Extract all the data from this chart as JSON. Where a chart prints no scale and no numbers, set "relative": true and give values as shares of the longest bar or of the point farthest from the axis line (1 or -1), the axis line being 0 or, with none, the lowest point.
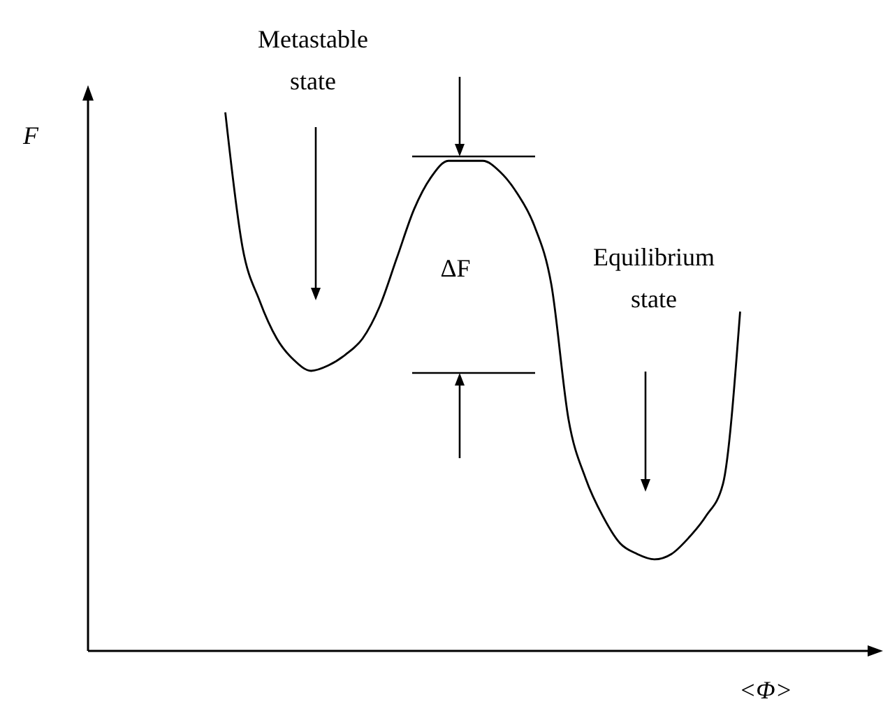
{
  "chart_data": {
    "type": "line",
    "relative": true,
    "ylabel": "F",
    "xlabel": "<Φ>",
    "color": "#000000",
    "marker": "none",
    "annotations": [
      "Metastable state",
      "ΔF",
      "Equilibrium state"
    ],
    "categories": [
      null,
      null,
      null,
      null,
      null,
      null,
      null,
      null,
      null,
      null,
      null,
      null,
      null,
      null,
      null,
      null,
      null,
      null,
      null,
      null,
      null,
      null,
      null,
      null,
      null,
      null,
      null,
      null,
      null,
      null,
      null,
      null,
      null,
      null,
      null,
      null,
      null,
      null,
      null,
      null,
      null,
      null,
      null,
      null,
      null,
      null,
      null
    ],
    "values": [
      null,
      null,
      null,
      null,
      null,
      null,
      null,
      null,
      1.0,
      0.75,
      0.65,
      0.58,
      0.54,
      0.52,
      0.53,
      0.55,
      0.58,
      0.64,
      0.73,
      0.82,
      0.88,
      0.91,
      0.91,
      0.91,
      0.89,
      0.85,
      0.79,
      0.68,
      0.43,
      0.32,
      0.25,
      0.2,
      0.18,
      0.17,
      0.18,
      0.21,
      0.25,
      0.31,
      0.63,
      null,
      null,
      null,
      null,
      null,
      null,
      null,
      null
    ]
  }
}
